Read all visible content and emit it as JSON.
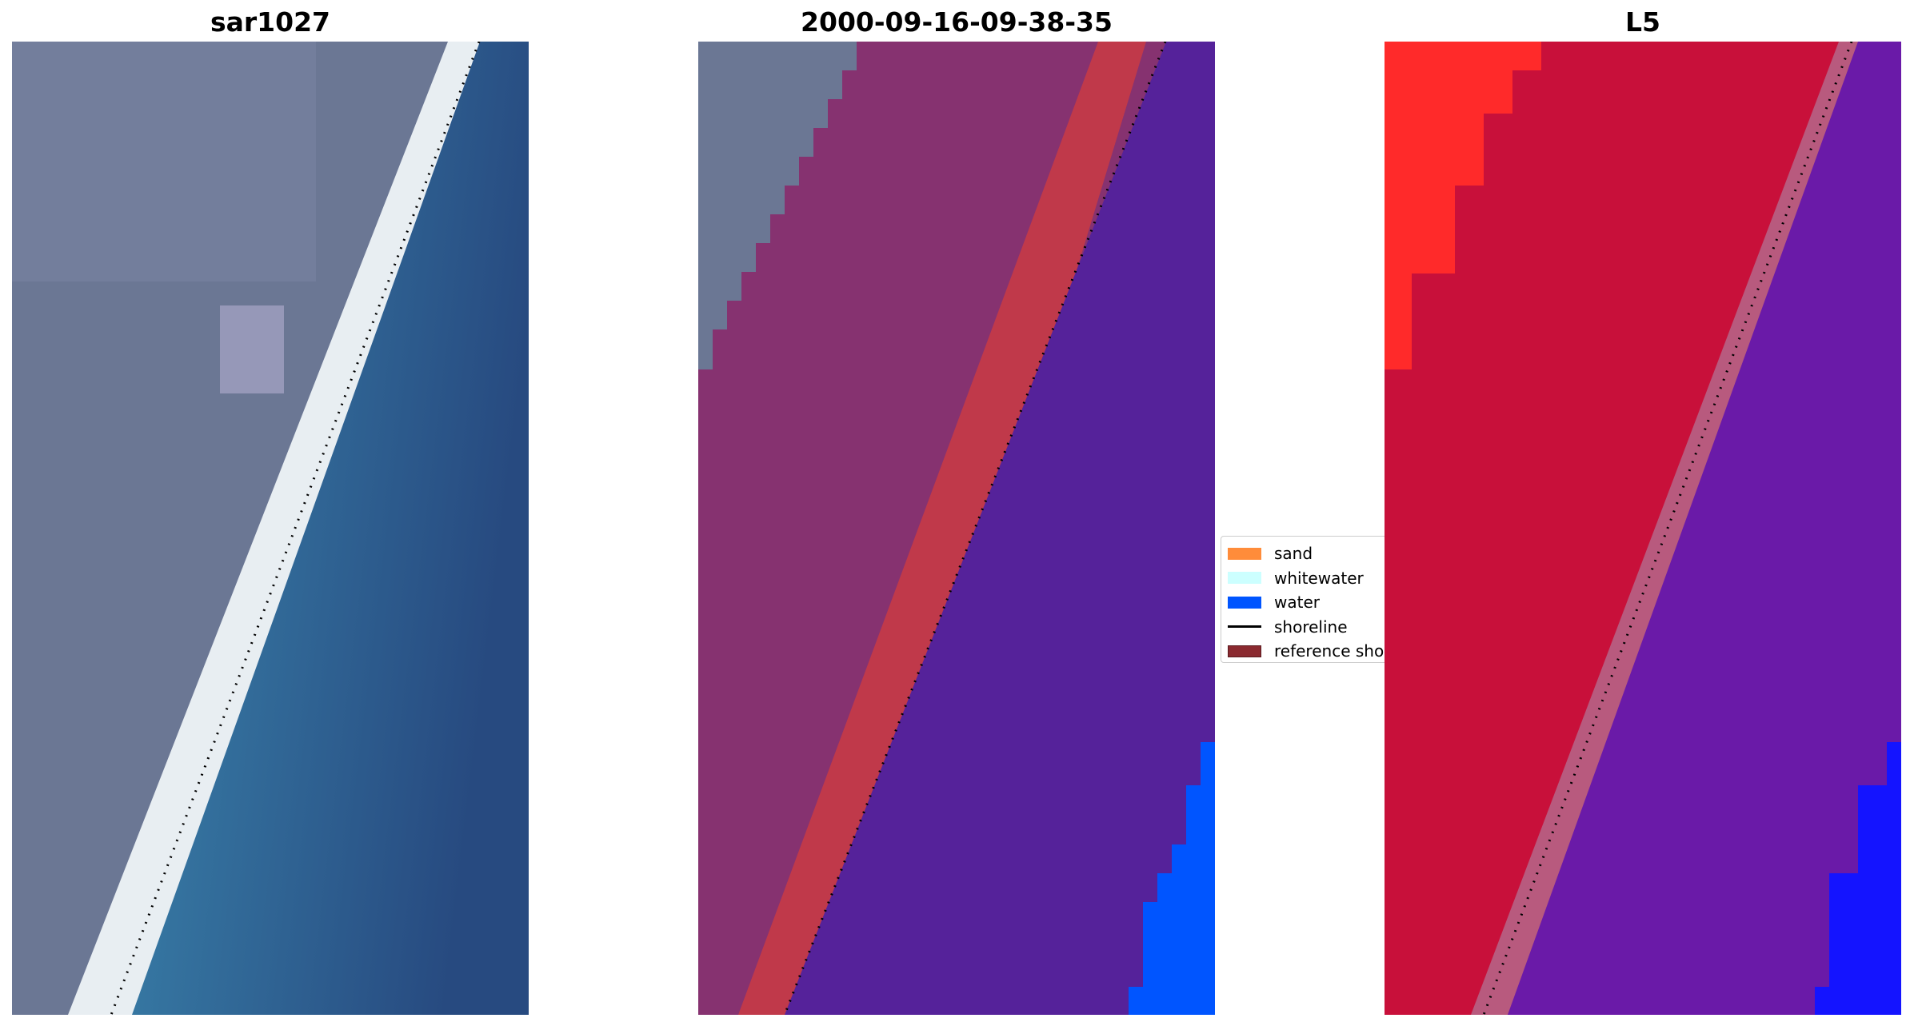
{
  "panels": [
    {
      "title": "sar1027"
    },
    {
      "title": "2000-09-16-09-38-35"
    },
    {
      "title": "L5"
    }
  ],
  "legend": {
    "items": [
      {
        "label": "sand",
        "color": "#ff8c3a",
        "kind": "patch"
      },
      {
        "label": "whitewater",
        "color": "#ccffff",
        "kind": "patch"
      },
      {
        "label": "water",
        "color": "#0055ff",
        "kind": "patch"
      },
      {
        "label": "shoreline",
        "color": "#000000",
        "kind": "line"
      },
      {
        "label": "reference shoreline",
        "color": "#8b2a30",
        "kind": "patch"
      }
    ]
  },
  "colors": {
    "rgb_land": "#6b7794",
    "rgb_beach": "#e8eef2",
    "rgb_ocean": "#2f6a9a",
    "class_land": "#863270",
    "class_sand_overlay": "#c0394a",
    "class_water_overlay": "#55229a",
    "class_water_pure": "#0055ff",
    "index_land": "#c8103a",
    "index_water": "#6a1aa8",
    "index_pure_water": "#1414ff",
    "shoreline": "#000000"
  }
}
